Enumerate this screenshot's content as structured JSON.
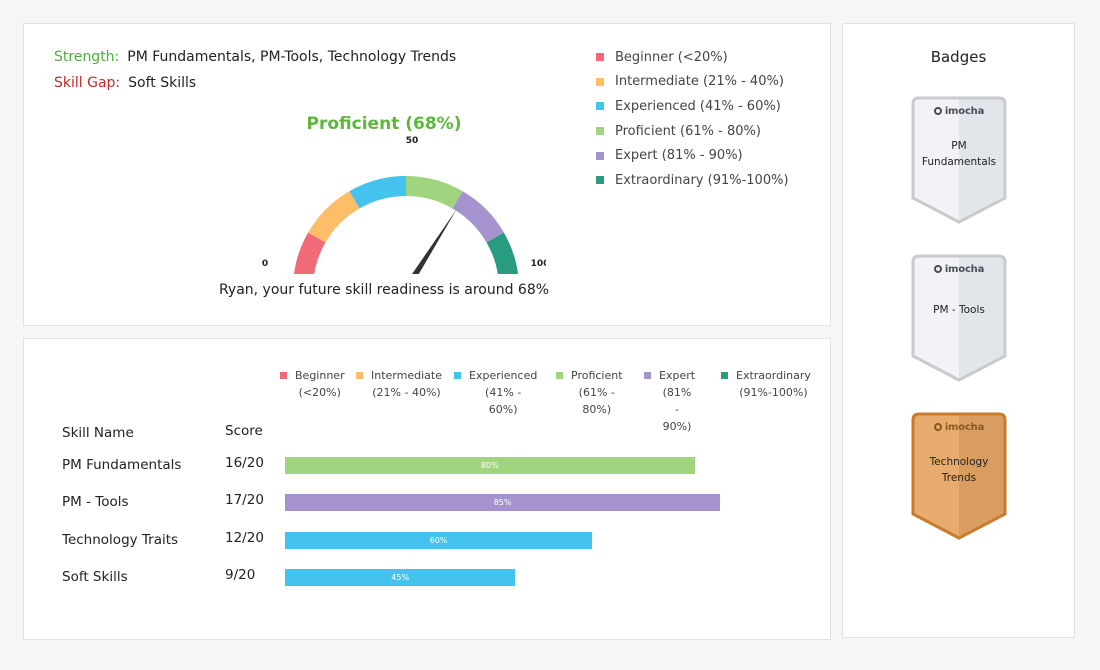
{
  "summary": {
    "strength_label": "Strength:",
    "strength_value": "PM Fundamentals, PM-Tools, Technology Trends",
    "gap_label": "Skill Gap:",
    "gap_value": "Soft Skills",
    "level_text": "Proficient (68%)",
    "level_color": "#5cb83a",
    "gauge": {
      "value": 68,
      "min_label": "0",
      "mid_label": "50",
      "max_label": "100",
      "segment_colors": [
        "#f06a78",
        "#fdbd69",
        "#44c3ef",
        "#a0d47f",
        "#a493cf",
        "#289b80"
      ]
    },
    "readiness_text": "Ryan, your future skill readiness is around 68%"
  },
  "legend": [
    {
      "name": "Beginner",
      "range": "(<20%)",
      "full": "Beginner (<20%)",
      "color": "#f06a78"
    },
    {
      "name": "Intermediate",
      "range": "(21% - 40%)",
      "full": "Intermediate (21% - 40%)",
      "color": "#fdbd69"
    },
    {
      "name": "Experienced",
      "range": "(41% - 60%)",
      "full": "Experienced (41% - 60%)",
      "color": "#44c3ef"
    },
    {
      "name": "Proficient",
      "range": "(61% - 80%)",
      "full": "Proficient (61% - 80%)",
      "color": "#a0d47f"
    },
    {
      "name": "Expert",
      "range": "(81% - 90%)",
      "full": "Expert (81% - 90%)",
      "color": "#a493cf"
    },
    {
      "name": "Extraordinary",
      "range": "(91%-100%)",
      "full": "Extraordinary (91%-100%)",
      "color": "#289b80"
    }
  ],
  "table": {
    "col_name": "Skill Name",
    "col_score": "Score",
    "rows": [
      {
        "name": "PM Fundamentals",
        "score": "16/20",
        "percent": 80,
        "label": "80%",
        "color": "#a0d47f"
      },
      {
        "name": "PM - Tools",
        "score": "17/20",
        "percent": 85,
        "label": "85%",
        "color": "#a493cf"
      },
      {
        "name": "Technology Traits",
        "score": "12/20",
        "percent": 60,
        "label": "60%",
        "color": "#44c3ef"
      },
      {
        "name": "Soft Skills",
        "score": "9/20",
        "percent": 45,
        "label": "45%",
        "color": "#44c3ef"
      }
    ]
  },
  "badges": {
    "title": "Badges",
    "logo_text": "imocha",
    "items": [
      {
        "line1": "PM",
        "line2": "Fundamentals",
        "style": "silver"
      },
      {
        "line1": "PM - Tools",
        "line2": "",
        "style": "silver"
      },
      {
        "line1": "Technology",
        "line2": "Trends",
        "style": "bronze"
      }
    ]
  }
}
